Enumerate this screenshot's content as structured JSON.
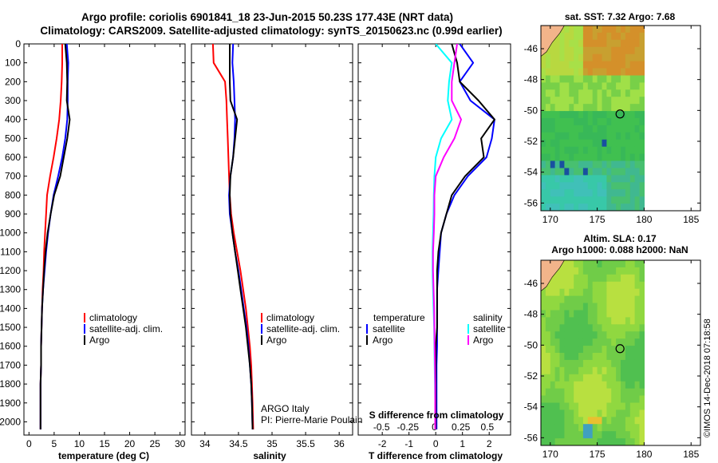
{
  "title_line1": "Argo profile: coriolis 6901841_18 23-Jun-2015 50.23S 177.43E (NRT data)",
  "title_line2": "Climatology: CARS2009. Satellite-adjusted climatology: synTS_20150623.nc (0.99d earlier)",
  "colors": {
    "climatology": "#ff0000",
    "satellite": "#0000ff",
    "argo": "#000000",
    "sat_salinity": "#00ffff",
    "argo_salinity": "#ff00ff"
  },
  "chart_data": [
    {
      "type": "line",
      "id": "temperature",
      "xlabel": "temperature (deg C)",
      "ylabel": "",
      "xlim": [
        -1,
        31
      ],
      "ylim": [
        2070,
        0
      ],
      "xticks": [
        0,
        5,
        10,
        15,
        20,
        25,
        30
      ],
      "yticks": [
        0,
        100,
        200,
        300,
        400,
        500,
        600,
        700,
        800,
        900,
        1000,
        1100,
        1200,
        1300,
        1400,
        1500,
        1600,
        1700,
        1800,
        1900,
        2000
      ],
      "legend": [
        "climatology",
        "satellite-adj. clim.",
        "Argo"
      ],
      "series": [
        {
          "name": "climatology",
          "color": "#ff0000",
          "x": [
            6.6,
            6.6,
            6.5,
            6.3,
            6.0,
            5.5,
            4.9,
            4.2,
            3.6,
            3.4,
            3.2,
            3.0,
            2.9,
            2.7,
            2.6,
            2.5,
            2.4,
            2.4,
            2.3,
            2.3,
            2.3
          ],
          "y": [
            0,
            100,
            200,
            300,
            400,
            500,
            600,
            700,
            800,
            900,
            1000,
            1100,
            1200,
            1300,
            1400,
            1500,
            1600,
            1700,
            1800,
            1900,
            2040
          ]
        },
        {
          "name": "satellite-adj. clim.",
          "color": "#0000ff",
          "x": [
            7.5,
            7.8,
            7.7,
            7.7,
            7.6,
            7.2,
            6.6,
            5.8,
            4.9,
            4.3,
            3.8,
            3.4,
            3.1,
            2.8,
            2.6,
            2.5,
            2.4,
            2.4,
            2.3,
            2.3,
            2.3
          ],
          "y": [
            0,
            100,
            200,
            300,
            400,
            500,
            600,
            700,
            800,
            900,
            1000,
            1100,
            1200,
            1300,
            1400,
            1500,
            1600,
            1700,
            1800,
            1900,
            2040
          ]
        },
        {
          "name": "Argo",
          "color": "#000000",
          "x": [
            7.2,
            7.5,
            7.6,
            7.5,
            8.1,
            7.6,
            6.9,
            6.2,
            5.0,
            4.3,
            3.7,
            3.3,
            3.0,
            2.8,
            2.6,
            2.5,
            2.4,
            2.4,
            2.3,
            2.3,
            2.3
          ],
          "y": [
            0,
            100,
            200,
            300,
            400,
            500,
            600,
            700,
            800,
            900,
            1000,
            1100,
            1200,
            1300,
            1400,
            1500,
            1600,
            1700,
            1800,
            1900,
            2040
          ]
        }
      ]
    },
    {
      "type": "line",
      "id": "salinity",
      "xlabel": "salinity",
      "xlim": [
        33.8,
        36.2
      ],
      "ylim": [
        2070,
        0
      ],
      "xticks": [
        34,
        34.5,
        35,
        35.5,
        36
      ],
      "ticklabels": [
        "34",
        "34.5",
        "35",
        "35.5",
        "36"
      ],
      "legend": [
        "climatology",
        "satellite-adj. clim.",
        "Argo"
      ],
      "annotation": [
        "ARGO Italy",
        "PI: Pierre-Marie Poulain"
      ],
      "series": [
        {
          "name": "climatology",
          "color": "#ff0000",
          "x": [
            34.12,
            34.13,
            34.3,
            34.32,
            34.33,
            34.34,
            34.35,
            34.36,
            34.37,
            34.39,
            34.43,
            34.48,
            34.53,
            34.57,
            34.61,
            34.64,
            34.67,
            34.69,
            34.7,
            34.71,
            34.72
          ],
          "y": [
            0,
            100,
            200,
            300,
            400,
            500,
            600,
            700,
            800,
            900,
            1000,
            1100,
            1200,
            1300,
            1400,
            1500,
            1600,
            1700,
            1800,
            1900,
            2040
          ]
        },
        {
          "name": "satellite-adj. clim.",
          "color": "#0000ff",
          "x": [
            34.42,
            34.41,
            34.43,
            34.44,
            34.45,
            34.44,
            34.42,
            34.38,
            34.36,
            34.37,
            34.41,
            34.45,
            34.5,
            34.54,
            34.58,
            34.62,
            34.65,
            34.67,
            34.69,
            34.7,
            34.71
          ],
          "y": [
            0,
            100,
            200,
            300,
            400,
            500,
            600,
            700,
            800,
            900,
            1000,
            1100,
            1200,
            1300,
            1400,
            1500,
            1600,
            1700,
            1800,
            1900,
            2040
          ]
        },
        {
          "name": "Argo",
          "color": "#000000",
          "x": [
            34.37,
            34.37,
            34.37,
            34.38,
            34.48,
            34.45,
            34.42,
            34.38,
            34.37,
            34.38,
            34.41,
            34.45,
            34.49,
            34.53,
            34.57,
            34.61,
            34.64,
            34.67,
            34.69,
            34.7,
            34.71
          ],
          "y": [
            0,
            100,
            200,
            300,
            400,
            500,
            600,
            700,
            800,
            900,
            1000,
            1100,
            1200,
            1300,
            1400,
            1500,
            1600,
            1700,
            1800,
            1900,
            2040
          ]
        }
      ]
    },
    {
      "type": "line",
      "id": "difference",
      "xlabel": "T difference from climatology",
      "xlabel2": "S difference from climatology",
      "xlim": [
        -2.9,
        2.8
      ],
      "ylim": [
        2070,
        0
      ],
      "xticks": [
        -2,
        -1,
        0,
        1,
        2
      ],
      "xticks2": [
        -0.5,
        -0.25,
        0,
        0.25,
        0.5
      ],
      "ticklabels2": [
        "-0.5",
        "-0.25",
        "0",
        "0.25",
        "0.5"
      ],
      "legend_title_left": "temperature",
      "legend_title_right": "salinity",
      "legend_left": [
        "satellite",
        "Argo"
      ],
      "legend_right": [
        "satellite",
        "Argo"
      ],
      "series": [
        {
          "name": "satellite",
          "color": "#0000ff",
          "x": [
            0.9,
            1.4,
            0.9,
            1.3,
            2.2,
            2.1,
            1.9,
            1.2,
            0.7,
            0.4,
            0.2,
            0.15,
            0.1,
            0.05,
            0.05,
            0.05,
            0.05,
            0.03,
            0.03,
            0.03,
            0.03
          ],
          "y": [
            0,
            100,
            200,
            300,
            400,
            500,
            600,
            700,
            800,
            900,
            1000,
            1100,
            1200,
            1300,
            1400,
            1500,
            1600,
            1700,
            1800,
            1900,
            2040
          ]
        },
        {
          "name": "Argo",
          "color": "#000000",
          "x": [
            0.6,
            0.8,
            0.9,
            1.6,
            2.2,
            1.7,
            1.8,
            1.1,
            0.6,
            0.4,
            0.2,
            0.1,
            0.05,
            0.05,
            0.05,
            0.05,
            0.0,
            0.0,
            0.0,
            0.0,
            0.0
          ],
          "y": [
            0,
            100,
            200,
            300,
            400,
            500,
            600,
            700,
            800,
            900,
            1000,
            1100,
            1200,
            1300,
            1400,
            1500,
            1600,
            1700,
            1800,
            1900,
            2040
          ]
        },
        {
          "name": "satellite",
          "color": "#00ffff",
          "x": [
            0.0,
            0.6,
            0.5,
            0.45,
            0.6,
            0.2,
            0.0,
            -0.05,
            -0.07,
            -0.08,
            -0.1,
            -0.12,
            -0.12,
            -0.1,
            -0.08,
            -0.06,
            -0.05,
            -0.04,
            -0.03,
            -0.02,
            -0.02
          ],
          "y": [
            0,
            100,
            200,
            300,
            400,
            500,
            600,
            700,
            800,
            900,
            1000,
            1100,
            1200,
            1300,
            1400,
            1500,
            1600,
            1700,
            1800,
            1900,
            2040
          ]
        },
        {
          "name": "Argo",
          "color": "#ff00ff",
          "x": [
            0.8,
            0.7,
            0.6,
            0.6,
            0.95,
            0.7,
            0.3,
            0.0,
            -0.05,
            -0.05,
            -0.07,
            -0.1,
            -0.1,
            -0.08,
            -0.06,
            -0.05,
            -0.04,
            -0.03,
            -0.02,
            -0.02,
            -0.02
          ],
          "y": [
            0,
            100,
            200,
            300,
            400,
            500,
            600,
            700,
            800,
            900,
            1000,
            1100,
            1200,
            1300,
            1400,
            1500,
            1600,
            1700,
            1800,
            1900,
            2040
          ]
        }
      ]
    },
    {
      "type": "heatmap",
      "id": "sst_map",
      "title": "sat. SST: 7.32 Argo: 7.68",
      "xticks": [
        170,
        175,
        180,
        185
      ],
      "yticks": [
        -46,
        -48,
        -50,
        -52,
        -54,
        -56
      ],
      "xlim": [
        169,
        186
      ],
      "ylim": [
        -56.5,
        -44.5
      ],
      "data_extent_lon": [
        169,
        180
      ],
      "argo_position": {
        "lon": 177.43,
        "lat": -50.23
      }
    },
    {
      "type": "heatmap",
      "id": "sla_map",
      "title": "Altim. SLA: 0.17",
      "subtitle": "Argo h1000: 0.088 h2000: NaN",
      "xticks": [
        170,
        175,
        180,
        185
      ],
      "yticks": [
        -46,
        -48,
        -50,
        -52,
        -54,
        -56
      ],
      "xlim": [
        169,
        186
      ],
      "ylim": [
        -56.5,
        -44.5
      ],
      "data_extent_lon": [
        169,
        180
      ],
      "argo_position": {
        "lon": 177.43,
        "lat": -50.23
      }
    }
  ],
  "credit": "©IMOS 14-Dec-2018 07:18:58"
}
